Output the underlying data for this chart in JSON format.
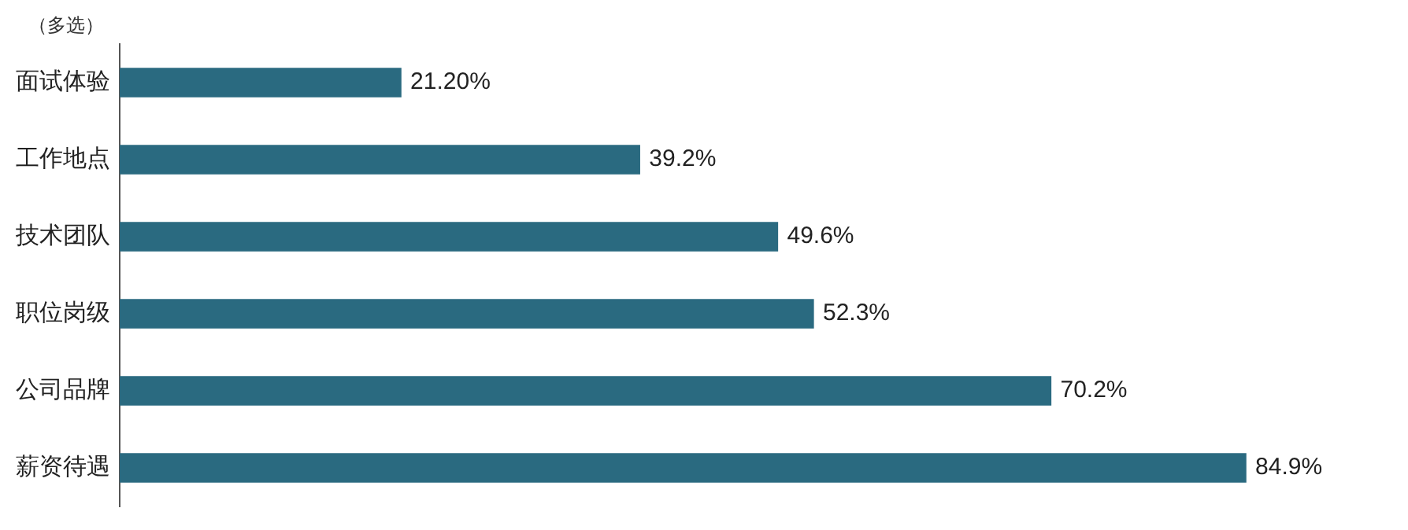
{
  "chart_data": {
    "type": "bar",
    "orientation": "horizontal",
    "subtitle": "（多选）",
    "categories": [
      "面试体验",
      "工作地点",
      "技术团队",
      "职位岗级",
      "公司品牌",
      "薪资待遇"
    ],
    "values": [
      21.2,
      39.2,
      49.6,
      52.3,
      70.2,
      84.9
    ],
    "value_labels": [
      "21.20%",
      "39.2%",
      "49.6%",
      "52.3%",
      "70.2%",
      "84.9%"
    ],
    "color": "#2a6a80",
    "grid": false,
    "legend": false
  }
}
